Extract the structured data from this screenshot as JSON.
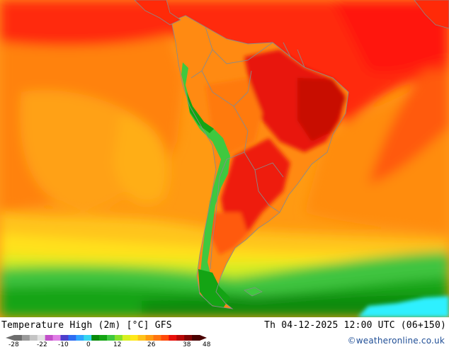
{
  "title": "Temperature High (2m) [°C] GFS",
  "valid_time": "Th 04-12-2025 12:00 UTC (06+150)",
  "credit": "©weatheronline.co.uk",
  "legend": {
    "ticks": [
      "-28",
      "-22",
      "-10",
      "0",
      "12",
      "26",
      "38",
      "48"
    ],
    "colors": [
      "#6e6e6e",
      "#9a9a9a",
      "#c4c4c4",
      "#e2e2e2",
      "#c24fc9",
      "#e07de6",
      "#4d3fcc",
      "#2e6cf2",
      "#2fa4ff",
      "#37d6f0",
      "#0a8a0a",
      "#14a414",
      "#3fc83f",
      "#86e02a",
      "#d8f020",
      "#ffe81a",
      "#ffc21a",
      "#ff9b10",
      "#ff7410",
      "#ff4a0a",
      "#e8100a",
      "#b80806",
      "#800404",
      "#4a0202"
    ]
  },
  "colors": {
    "ocean_warm": "#ff9410",
    "ocean_hot": "#ff3a0a",
    "tropic_red": "#ff1a08",
    "land_hot": "#e81408",
    "land_warm": "#ff7a10",
    "andes": "#3fc83f",
    "south_yellow": "#ffd21a",
    "south_green": "#14a414",
    "cold_cyan": "#2ef0ff",
    "border": "#8a8a8a"
  }
}
